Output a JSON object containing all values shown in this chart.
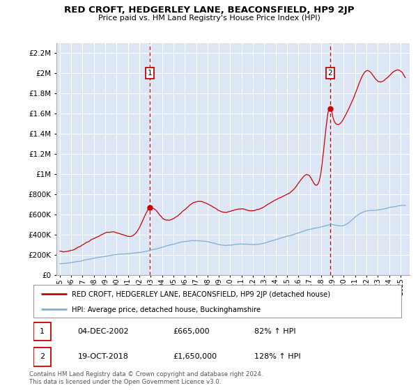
{
  "title": "RED CROFT, HEDGERLEY LANE, BEACONSFIELD, HP9 2JP",
  "subtitle": "Price paid vs. HM Land Registry's House Price Index (HPI)",
  "plot_bg_color": "#dce6f5",
  "ylim": [
    0,
    2300000
  ],
  "yticks": [
    0,
    200000,
    400000,
    600000,
    800000,
    1000000,
    1200000,
    1400000,
    1600000,
    1800000,
    2000000,
    2200000
  ],
  "ytick_labels": [
    "£0",
    "£200K",
    "£400K",
    "£600K",
    "£800K",
    "£1M",
    "£1.2M",
    "£1.4M",
    "£1.6M",
    "£1.8M",
    "£2M",
    "£2.2M"
  ],
  "xlim_start": 1995.0,
  "xlim_end": 2025.5,
  "xticks": [
    1995,
    1996,
    1997,
    1998,
    1999,
    2000,
    2001,
    2002,
    2003,
    2004,
    2005,
    2006,
    2007,
    2008,
    2009,
    2010,
    2011,
    2012,
    2013,
    2014,
    2015,
    2016,
    2017,
    2018,
    2019,
    2020,
    2021,
    2022,
    2023,
    2024,
    2025
  ],
  "red_line_color": "#cc0000",
  "blue_line_color": "#7bafd4",
  "marker1_x": 2002.92,
  "marker1_y": 665000,
  "marker2_x": 2018.79,
  "marker2_y": 1650000,
  "legend_line1": "RED CROFT, HEDGERLEY LANE, BEACONSFIELD, HP9 2JP (detached house)",
  "legend_line2": "HPI: Average price, detached house, Buckinghamshire",
  "table_data": [
    [
      "1",
      "04-DEC-2002",
      "£665,000",
      "82% ↑ HPI"
    ],
    [
      "2",
      "19-OCT-2018",
      "£1,650,000",
      "128% ↑ HPI"
    ]
  ],
  "footnote": "Contains HM Land Registry data © Crown copyright and database right 2024.\nThis data is licensed under the Open Government Licence v3.0."
}
